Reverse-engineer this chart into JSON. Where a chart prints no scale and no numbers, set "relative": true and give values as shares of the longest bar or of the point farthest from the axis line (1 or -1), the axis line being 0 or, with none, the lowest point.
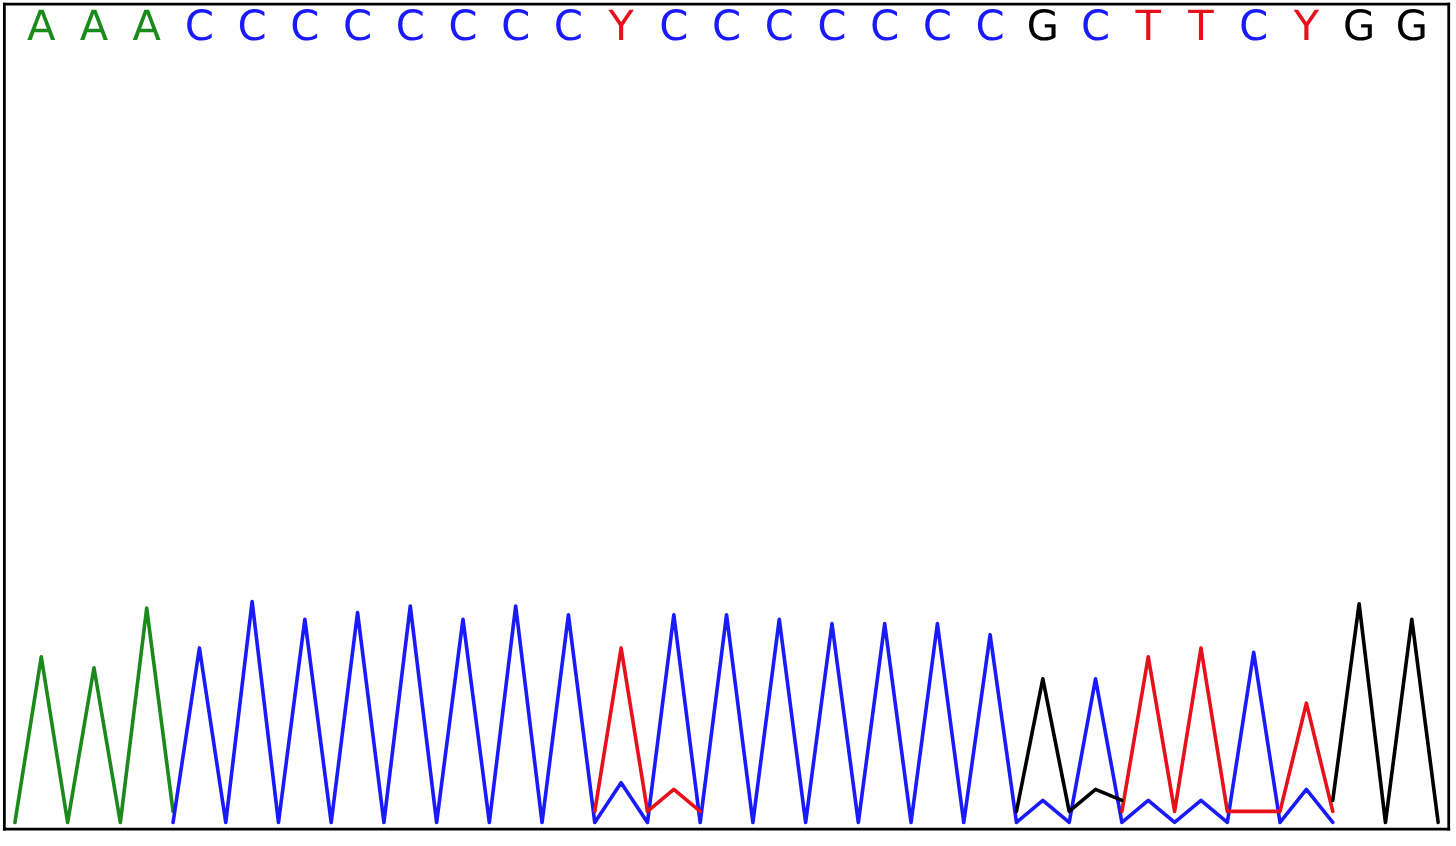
{
  "chart_data": {
    "type": "line",
    "relative": true,
    "categories": [
      null,
      "A",
      null,
      "A",
      null,
      "A",
      null,
      "C",
      null,
      "C",
      null,
      "C",
      null,
      "C",
      null,
      "C",
      null,
      "C",
      null,
      "C",
      null,
      "C",
      null,
      "Y",
      null,
      "C",
      null,
      "C",
      null,
      "C",
      null,
      "C",
      null,
      "C",
      null,
      "C",
      null,
      "C",
      null,
      "G",
      null,
      "C",
      null,
      "T",
      null,
      "T",
      null,
      "C",
      null,
      "Y",
      null,
      "G",
      null,
      "G",
      null
    ],
    "series": [
      {
        "color": "#1a8a1a",
        "values": [
          0,
          0.75,
          0,
          0.7,
          0,
          0.97,
          0.05,
          null,
          null,
          null,
          null,
          null,
          null,
          null,
          null,
          null,
          null,
          null,
          null,
          null,
          null,
          null,
          null,
          null,
          null,
          null,
          null,
          null,
          null,
          null,
          null,
          null,
          null,
          null,
          null,
          null,
          null,
          null,
          null,
          null,
          null,
          null,
          null,
          null,
          null,
          null,
          null,
          null,
          null,
          null,
          null,
          null,
          null,
          null,
          null
        ]
      },
      {
        "color": "#1a1aff",
        "values": [
          null,
          null,
          null,
          null,
          null,
          null,
          0,
          0.79,
          0,
          1.0,
          0,
          0.92,
          0,
          0.95,
          0,
          0.98,
          0,
          0.92,
          0,
          0.98,
          0,
          0.94,
          0,
          0.18,
          0,
          0.94,
          0,
          0.94,
          0,
          0.92,
          0,
          0.9,
          0,
          0.9,
          0,
          0.9,
          0,
          0.85,
          0,
          0.1,
          0,
          0.65,
          0,
          0.1,
          0,
          0.1,
          0,
          0.77,
          0,
          0.15,
          0,
          null,
          null,
          null,
          null
        ]
      },
      {
        "color": "#e8101a",
        "values": [
          null,
          null,
          null,
          null,
          null,
          null,
          null,
          null,
          null,
          null,
          null,
          null,
          null,
          null,
          null,
          null,
          null,
          null,
          null,
          null,
          null,
          null,
          0.05,
          0.79,
          0.05,
          0.15,
          0.05,
          null,
          null,
          null,
          null,
          null,
          null,
          null,
          null,
          null,
          null,
          null,
          null,
          null,
          null,
          null,
          0.05,
          0.75,
          0.05,
          0.79,
          0.05,
          0.05,
          0.05,
          0.54,
          0.05,
          null,
          null,
          null,
          null
        ]
      },
      {
        "color": "#000000",
        "values": [
          null,
          null,
          null,
          null,
          null,
          null,
          null,
          null,
          null,
          null,
          null,
          null,
          null,
          null,
          null,
          null,
          null,
          null,
          null,
          null,
          null,
          null,
          null,
          null,
          null,
          null,
          null,
          null,
          null,
          null,
          null,
          null,
          null,
          null,
          null,
          null,
          null,
          null,
          0.05,
          0.65,
          0.05,
          0.15,
          0.1,
          null,
          null,
          null,
          null,
          null,
          null,
          null,
          0.1,
          0.99,
          0,
          0.92,
          0
        ]
      }
    ],
    "tick_labels": "x",
    "grid": false,
    "legend": false
  }
}
